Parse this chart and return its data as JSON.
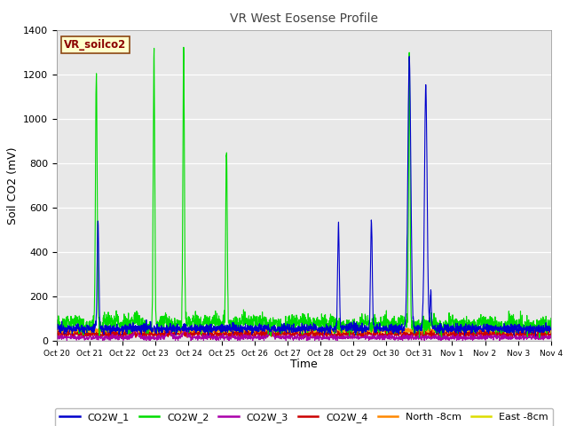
{
  "title": "VR West Eosense Profile",
  "ylabel": "Soil CO2 (mV)",
  "xlabel": "Time",
  "annotation": "VR_soilco2",
  "ylim": [
    0,
    1400
  ],
  "fig_bg": "#ffffff",
  "plot_bg": "#e8e8e8",
  "tick_labels": [
    "Oct 20",
    "Oct 21",
    "Oct 22",
    "Oct 23",
    "Oct 24",
    "Oct 25",
    "Oct 26",
    "Oct 27",
    "Oct 28",
    "Oct 29",
    "Oct 30",
    "Oct 31",
    "Nov 1",
    "Nov 2",
    "Nov 3",
    "Nov 4"
  ],
  "series_colors": {
    "CO2W_1": "#0000cc",
    "CO2W_2": "#00dd00",
    "CO2W_3": "#aa00aa",
    "CO2W_4": "#cc0000",
    "North -8cm": "#ff8800",
    "East -8cm": "#dddd00"
  }
}
